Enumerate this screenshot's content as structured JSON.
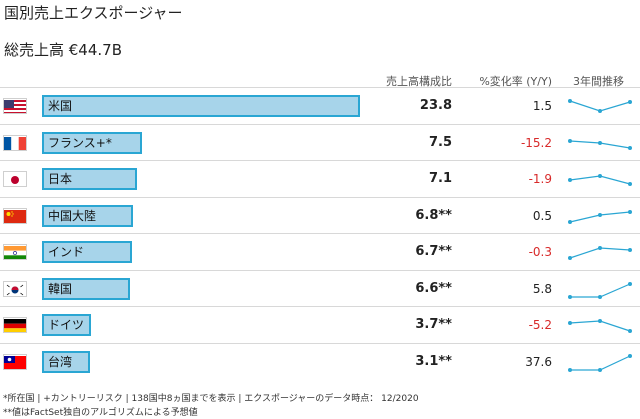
{
  "title": "国別売上エクスポージャー",
  "total": "総売上高 €44.7B",
  "headers": {
    "share": "売上高構成比",
    "change": "%変化率 (Y/Y)",
    "trend": "3年間推移"
  },
  "colors": {
    "bar_fill": "#a7d4ea",
    "bar_border": "#2aa6d3",
    "spark": "#2aa6d3",
    "negative": "#d82a2a"
  },
  "rows": [
    {
      "country": "米国",
      "flag": "us-flag-icon",
      "share_text": "23.8",
      "share": 23.8,
      "change_text": "1.5",
      "change": 1.5,
      "trend": [
        0.75,
        0.25,
        0.7
      ]
    },
    {
      "country": "フランス+*",
      "flag": "fr-flag-icon",
      "share_text": "7.5",
      "share": 7.5,
      "change_text": "-15.2",
      "change": -15.2,
      "trend": [
        0.6,
        0.5,
        0.25
      ]
    },
    {
      "country": "日本",
      "flag": "jp-flag-icon",
      "share_text": "7.1",
      "share": 7.1,
      "change_text": "-1.9",
      "change": -1.9,
      "trend": [
        0.45,
        0.65,
        0.25
      ]
    },
    {
      "country": "中国大陸",
      "flag": "cn-flag-icon",
      "share_text": "6.8**",
      "share": 6.8,
      "change_text": "0.5",
      "change": 0.5,
      "trend": [
        0.2,
        0.55,
        0.7
      ]
    },
    {
      "country": "インド",
      "flag": "in-flag-icon",
      "share_text": "6.7**",
      "share": 6.7,
      "change_text": "-0.3",
      "change": -0.3,
      "trend": [
        0.2,
        0.7,
        0.6
      ]
    },
    {
      "country": "韓国",
      "flag": "kr-flag-icon",
      "share_text": "6.6**",
      "share": 6.6,
      "change_text": "5.8",
      "change": 5.8,
      "trend": [
        0.1,
        0.1,
        0.75
      ]
    },
    {
      "country": "ドイツ",
      "flag": "de-flag-icon",
      "share_text": "3.7**",
      "share": 3.7,
      "change_text": "-5.2",
      "change": -5.2,
      "trend": [
        0.6,
        0.7,
        0.2
      ]
    },
    {
      "country": "台湾",
      "flag": "tw-flag-icon",
      "share_text": "3.1**",
      "share": 3.1,
      "change_text": "37.6",
      "change": 37.6,
      "trend": [
        0.1,
        0.1,
        0.8
      ]
    }
  ],
  "footnotes": [
    "*所在国 | +カントリーリスク | 138国中8ヵ国までを表示 | エクスポージャーのデータ時点： 12/2020",
    "**値はFactSet独自のアルゴリズムによる予想値"
  ]
}
